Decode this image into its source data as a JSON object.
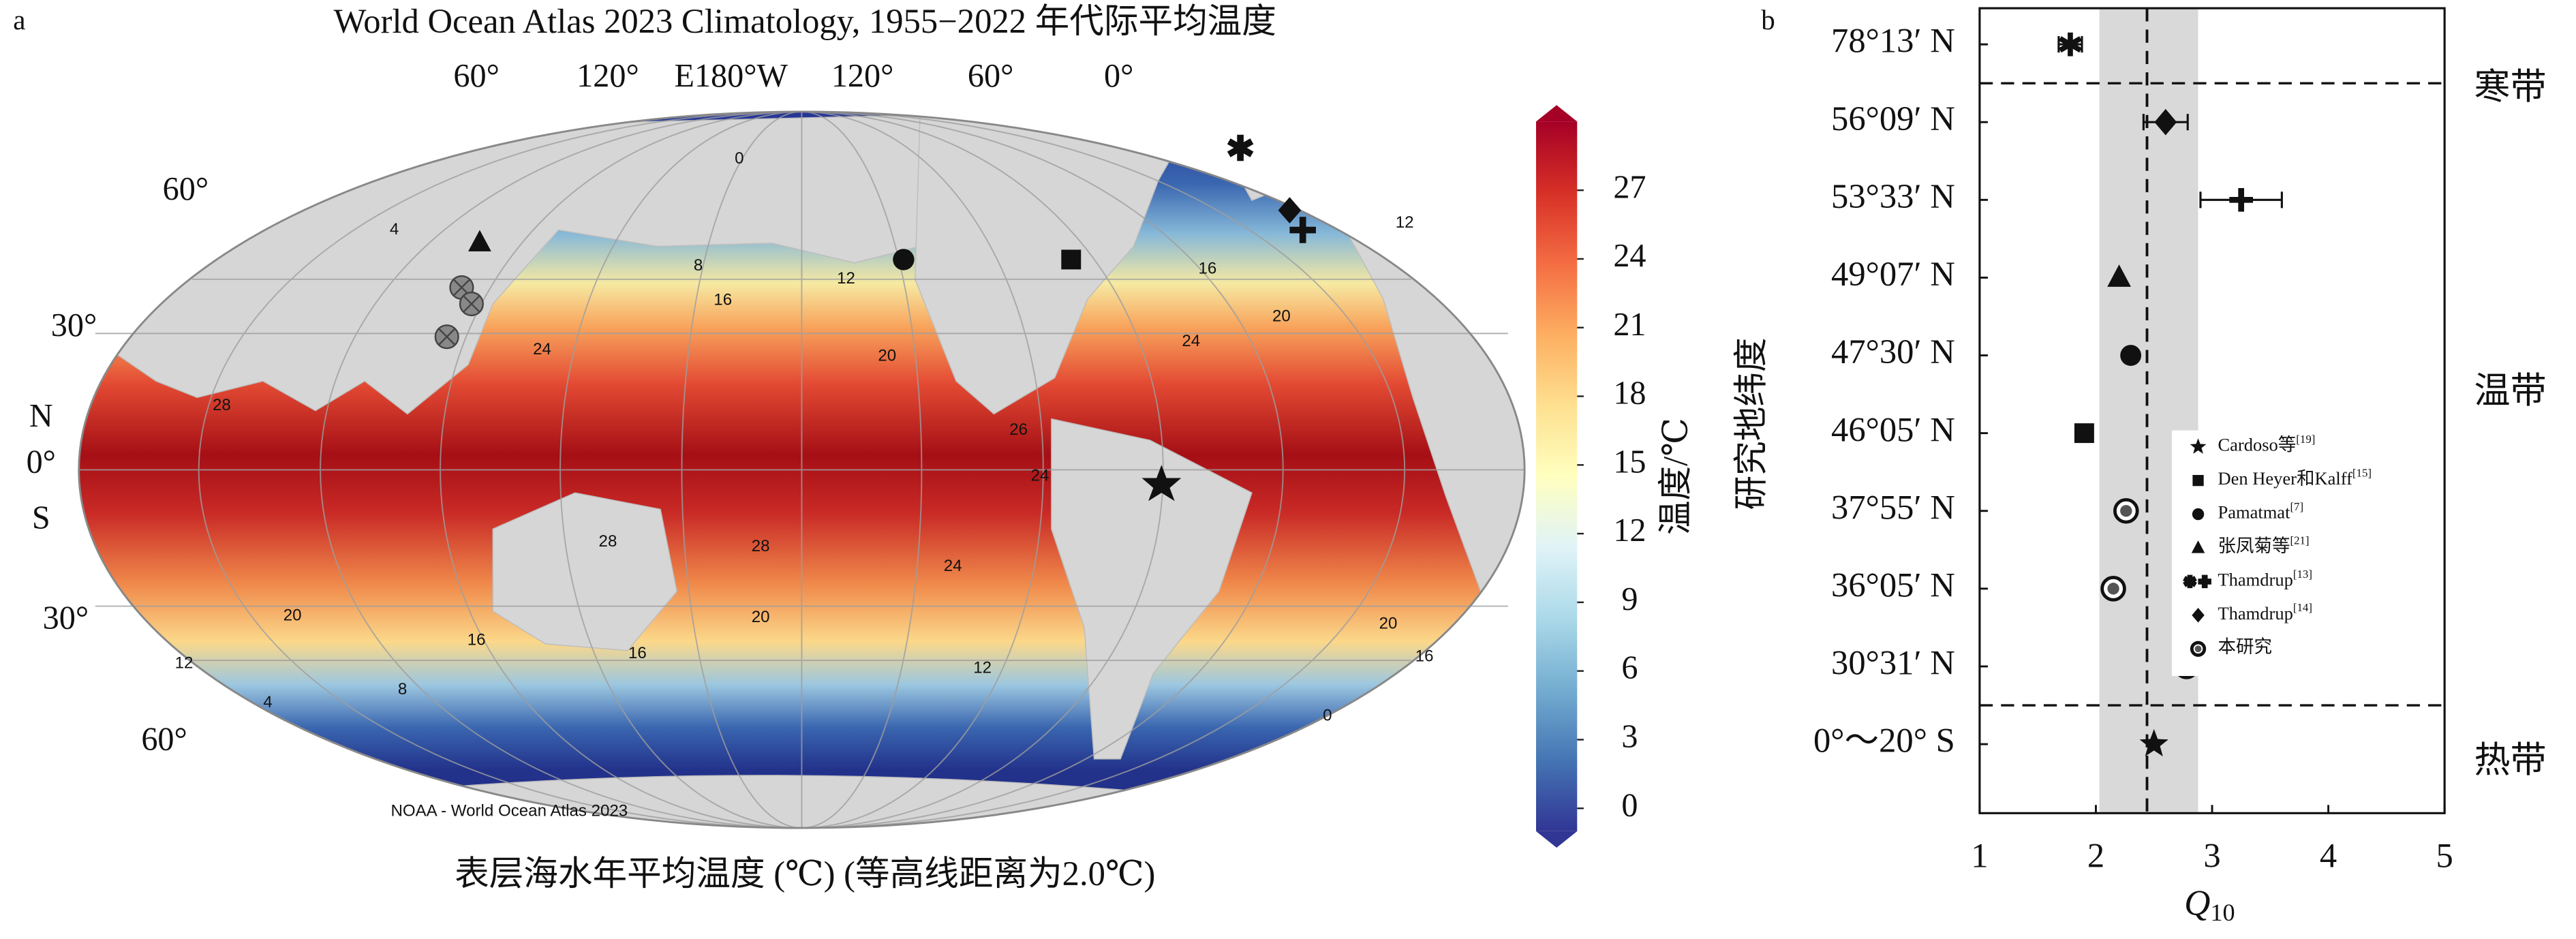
{
  "map": {
    "panel_label": "a",
    "title": "World Ocean Atlas 2023 Climatology, 1955−2022 年代际平均温度",
    "lon_labels": [
      "60°",
      "120°",
      "E180°W",
      "120°",
      "60°",
      "0°"
    ],
    "lat_labels": [
      "60°",
      "30°",
      "N",
      "0°",
      "S",
      "30°",
      "60°"
    ],
    "caption": "表层海水年平均温度 (℃) (等高线距离为2.0℃)",
    "credit": "NOAA - World Ocean Atlas 2023",
    "contour_labels": [
      0,
      4,
      8,
      12,
      16,
      20,
      24,
      28,
      28,
      28,
      26,
      24,
      24,
      20,
      20,
      16,
      16,
      12,
      12,
      8,
      4,
      0,
      16,
      20,
      24,
      12,
      16,
      20
    ],
    "colorbar": {
      "label": "温度/℃",
      "lim": [
        -1,
        30
      ],
      "ticks": [
        0,
        3,
        6,
        9,
        12,
        15,
        18,
        21,
        24,
        27
      ]
    }
  },
  "chart_data": {
    "type": "scatter",
    "panel_label": "b",
    "ylabel": "研究地纬度",
    "xlabel": "Q",
    "xlabel_sub": "10",
    "categories": [
      "78°13′ N",
      "56°09′ N",
      "53°33′ N",
      "49°07′ N",
      "47°30′ N",
      "46°05′ N",
      "37°55′ N",
      "36°05′ N",
      "30°31′ N",
      "0°～20° S"
    ],
    "xlim": [
      1,
      5
    ],
    "xticks": [
      1,
      2,
      3,
      4,
      5
    ],
    "reference_band": [
      2.03,
      2.88
    ],
    "reference_line": 2.44,
    "zones": [
      {
        "label": "寒带",
        "categories": [
          0,
          0
        ]
      },
      {
        "label": "温带",
        "categories": [
          1,
          8
        ]
      },
      {
        "label": "热带",
        "categories": [
          9,
          9
        ]
      }
    ],
    "series": [
      {
        "name": "Cardoso等",
        "ref": "[19]",
        "marker": "star",
        "values": [
          null,
          null,
          null,
          null,
          null,
          null,
          null,
          null,
          null,
          2.5
        ]
      },
      {
        "name": "Den Heyer和Kalff",
        "ref": "[15]",
        "marker": "square",
        "values": [
          null,
          null,
          null,
          null,
          null,
          1.9,
          null,
          null,
          null,
          null
        ]
      },
      {
        "name": "Pamatmat",
        "ref": "[7]",
        "marker": "circle",
        "values": [
          null,
          null,
          null,
          null,
          2.3,
          null,
          null,
          null,
          null,
          null
        ]
      },
      {
        "name": "张凤菊等",
        "ref": "[21]",
        "marker": "triangle",
        "values": [
          null,
          null,
          null,
          2.2,
          null,
          null,
          null,
          null,
          null,
          null
        ]
      },
      {
        "name": "Thamdrup",
        "ref": "[13]",
        "marker": "asterisk-cross",
        "values": [
          1.78,
          null,
          3.25,
          null,
          null,
          null,
          null,
          null,
          null,
          null
        ],
        "errors": [
          0.1,
          null,
          0.35,
          null,
          null,
          null,
          null,
          null,
          null,
          null
        ]
      },
      {
        "name": "Thamdrup",
        "ref": "[14]",
        "marker": "diamond",
        "values": [
          null,
          2.6,
          null,
          null,
          null,
          null,
          null,
          null,
          null,
          null
        ],
        "errors": [
          null,
          0.19,
          null,
          null,
          null,
          null,
          null,
          null,
          null,
          null
        ]
      },
      {
        "name": "本研究",
        "marker": "otimes",
        "values": [
          null,
          null,
          null,
          null,
          null,
          null,
          2.26,
          2.15,
          2.78,
          null
        ]
      }
    ]
  }
}
